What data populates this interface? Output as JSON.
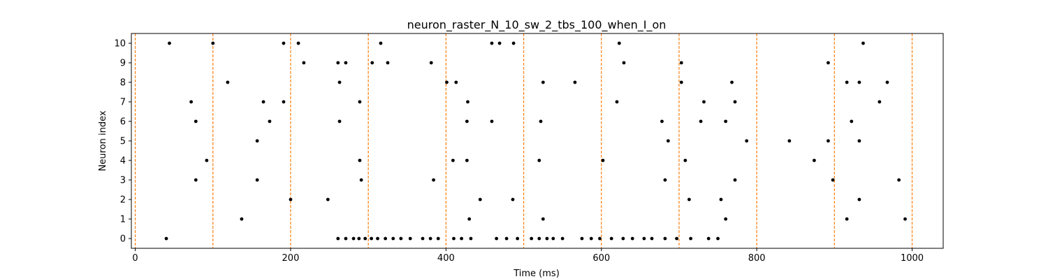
{
  "chart_data": {
    "type": "scatter",
    "title": "neuron_raster_N_10_sw_2_tbs_100_when_I_on",
    "xlabel": "Time (ms)",
    "ylabel": "Neuron index",
    "xlim": [
      -5,
      1040
    ],
    "ylim": [
      -0.5,
      10.5
    ],
    "xticks": [
      0,
      200,
      400,
      600,
      800,
      1000
    ],
    "yticks": [
      0,
      1,
      2,
      3,
      4,
      5,
      6,
      7,
      8,
      9,
      10
    ],
    "grid": false,
    "marker_color": "#000000",
    "vlines": {
      "x": [
        0,
        100,
        200,
        300,
        400,
        500,
        600,
        700,
        800,
        900,
        1000
      ],
      "style": "dashed",
      "color": "#ff7f0e"
    },
    "points": [
      [
        40,
        0
      ],
      [
        261,
        0
      ],
      [
        271,
        0
      ],
      [
        281,
        0
      ],
      [
        288,
        0
      ],
      [
        296,
        0
      ],
      [
        304,
        0
      ],
      [
        312,
        0
      ],
      [
        322,
        0
      ],
      [
        332,
        0
      ],
      [
        342,
        0
      ],
      [
        354,
        0
      ],
      [
        370,
        0
      ],
      [
        380,
        0
      ],
      [
        390,
        0
      ],
      [
        410,
        0
      ],
      [
        420,
        0
      ],
      [
        432,
        0
      ],
      [
        465,
        0
      ],
      [
        478,
        0
      ],
      [
        492,
        0
      ],
      [
        510,
        0
      ],
      [
        520,
        0
      ],
      [
        530,
        0
      ],
      [
        538,
        0
      ],
      [
        550,
        0
      ],
      [
        575,
        0
      ],
      [
        587,
        0
      ],
      [
        598,
        0
      ],
      [
        613,
        0
      ],
      [
        628,
        0
      ],
      [
        640,
        0
      ],
      [
        655,
        0
      ],
      [
        665,
        0
      ],
      [
        682,
        0
      ],
      [
        697,
        0
      ],
      [
        715,
        0
      ],
      [
        738,
        0
      ],
      [
        750,
        0
      ],
      [
        137,
        1
      ],
      [
        430,
        1
      ],
      [
        525,
        1
      ],
      [
        760,
        1
      ],
      [
        916,
        1
      ],
      [
        991,
        1
      ],
      [
        200,
        2
      ],
      [
        248,
        2
      ],
      [
        444,
        2
      ],
      [
        486,
        2
      ],
      [
        713,
        2
      ],
      [
        754,
        2
      ],
      [
        932,
        2
      ],
      [
        78,
        3
      ],
      [
        157,
        3
      ],
      [
        291,
        3
      ],
      [
        384,
        3
      ],
      [
        682,
        3
      ],
      [
        772,
        3
      ],
      [
        898,
        3
      ],
      [
        983,
        3
      ],
      [
        92,
        4
      ],
      [
        289,
        4
      ],
      [
        409,
        4
      ],
      [
        427,
        4
      ],
      [
        520,
        4
      ],
      [
        602,
        4
      ],
      [
        708,
        4
      ],
      [
        874,
        4
      ],
      [
        157,
        5
      ],
      [
        686,
        5
      ],
      [
        787,
        5
      ],
      [
        842,
        5
      ],
      [
        892,
        5
      ],
      [
        932,
        5
      ],
      [
        78,
        6
      ],
      [
        173,
        6
      ],
      [
        263,
        6
      ],
      [
        427,
        6
      ],
      [
        459,
        6
      ],
      [
        522,
        6
      ],
      [
        678,
        6
      ],
      [
        728,
        6
      ],
      [
        760,
        6
      ],
      [
        922,
        6
      ],
      [
        72,
        7
      ],
      [
        165,
        7
      ],
      [
        191,
        7
      ],
      [
        289,
        7
      ],
      [
        428,
        7
      ],
      [
        620,
        7
      ],
      [
        732,
        7
      ],
      [
        772,
        7
      ],
      [
        958,
        7
      ],
      [
        119,
        8
      ],
      [
        263,
        8
      ],
      [
        401,
        8
      ],
      [
        413,
        8
      ],
      [
        525,
        8
      ],
      [
        566,
        8
      ],
      [
        703,
        8
      ],
      [
        768,
        8
      ],
      [
        916,
        8
      ],
      [
        932,
        8
      ],
      [
        968,
        8
      ],
      [
        217,
        9
      ],
      [
        261,
        9
      ],
      [
        271,
        9
      ],
      [
        305,
        9
      ],
      [
        325,
        9
      ],
      [
        381,
        9
      ],
      [
        629,
        9
      ],
      [
        703,
        9
      ],
      [
        892,
        9
      ],
      [
        44,
        10
      ],
      [
        100,
        10
      ],
      [
        191,
        10
      ],
      [
        210,
        10
      ],
      [
        316,
        10
      ],
      [
        459,
        10
      ],
      [
        469,
        10
      ],
      [
        487,
        10
      ],
      [
        623,
        10
      ],
      [
        937,
        10
      ]
    ]
  }
}
